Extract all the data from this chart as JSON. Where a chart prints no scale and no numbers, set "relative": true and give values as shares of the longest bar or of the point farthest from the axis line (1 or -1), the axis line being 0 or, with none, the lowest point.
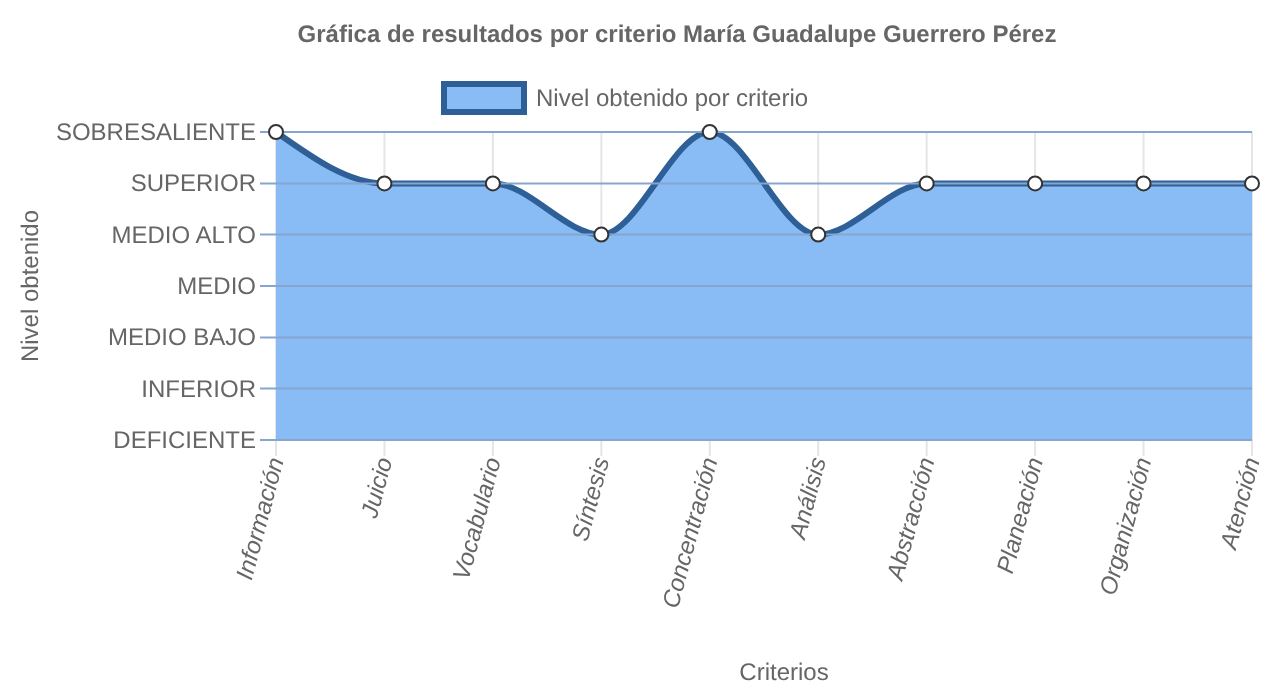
{
  "chart_data": {
    "type": "area",
    "title": "Gráfica de resultados por criterio María Guadalupe Guerrero Pérez",
    "xlabel": "Criterios",
    "annotations": [
      "Nivel obtenido"
    ],
    "categories": [
      "Información",
      "Juicio",
      "Vocabulario",
      "Síntesis",
      "Concentración",
      "Análisis",
      "Abstracción",
      "Planeación",
      "Organización",
      "Atención"
    ],
    "series": [
      {
        "name": "Nivel obtenido por criterio",
        "color": "#2f5f97",
        "values": [
          1,
          0.833,
          0.833,
          0.667,
          1,
          0.667,
          0.833,
          0.833,
          0.833,
          0.833
        ]
      }
    ],
    "relative": true,
    "ref_lines": [
      {
        "axis": "y",
        "value": 0,
        "label": "DEFICIENTE"
      },
      {
        "axis": "y",
        "value": 0.167,
        "label": "INFERIOR"
      },
      {
        "axis": "y",
        "value": 0.333,
        "label": "MEDIO BAJO"
      },
      {
        "axis": "y",
        "value": 0.5,
        "label": "MEDIO"
      },
      {
        "axis": "y",
        "value": 0.667,
        "label": "MEDIO ALTO"
      },
      {
        "axis": "y",
        "value": 0.833,
        "label": "SUPERIOR"
      },
      {
        "axis": "y",
        "value": 1,
        "label": "SOBRESALIENTE"
      }
    ],
    "grid": "x",
    "legend": "top",
    "marker": "circle",
    "line_style": "solid"
  }
}
